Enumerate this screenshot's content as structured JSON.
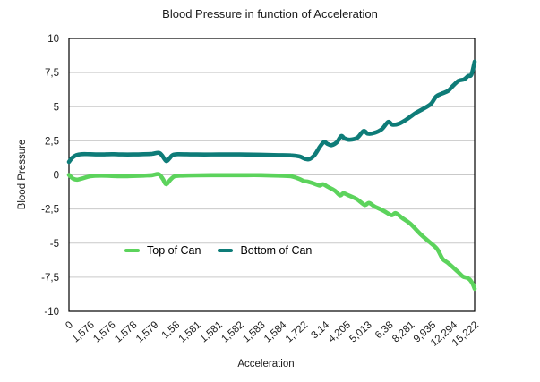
{
  "chart_data": {
    "type": "line",
    "title": "Blood Pressure in function of Acceleration",
    "xlabel": "Acceleration",
    "ylabel": "Blood Pressure",
    "ylim": [
      -10,
      10
    ],
    "grid": "horizontal-only",
    "legend_position": "inside-lower-left",
    "colors": {
      "top_of_can": "#5cd35c",
      "bottom_of_can": "#0e7c78",
      "gridline": "#c9c9c9",
      "plot_border": "#000000",
      "text": "#1a1a1a"
    },
    "y_ticks": [
      {
        "label": "10",
        "value": 10
      },
      {
        "label": "7,5",
        "value": 7.5
      },
      {
        "label": "5",
        "value": 5
      },
      {
        "label": "2,5",
        "value": 2.5
      },
      {
        "label": "0",
        "value": 0
      },
      {
        "label": "-2,5",
        "value": -2.5
      },
      {
        "label": "-5",
        "value": -5
      },
      {
        "label": "-7,5",
        "value": -7.5
      },
      {
        "label": "-10",
        "value": -10
      }
    ],
    "categories": [
      "0",
      "1,576",
      "1,576",
      "1,578",
      "1,579",
      "1,58",
      "1,581",
      "1,581",
      "1,582",
      "1,583",
      "1,584",
      "1,722",
      "3,14",
      "4,205",
      "5,013",
      "6,38",
      "8,281",
      "9,935",
      "12,294",
      "15,222"
    ],
    "series": [
      {
        "name": "Top of Can",
        "color_key": "top_of_can",
        "points": [
          [
            0,
            0.0
          ],
          [
            0.2,
            -0.28
          ],
          [
            0.4,
            -0.35
          ],
          [
            0.65,
            -0.25
          ],
          [
            1,
            -0.1
          ],
          [
            1.5,
            -0.05
          ],
          [
            2,
            -0.08
          ],
          [
            2.5,
            -0.1
          ],
          [
            3,
            -0.08
          ],
          [
            3.5,
            -0.05
          ],
          [
            3.9,
            -0.02
          ],
          [
            4.2,
            0.05
          ],
          [
            4.4,
            -0.3
          ],
          [
            4.55,
            -0.68
          ],
          [
            4.75,
            -0.35
          ],
          [
            4.95,
            -0.1
          ],
          [
            5.3,
            -0.05
          ],
          [
            6,
            -0.03
          ],
          [
            7,
            -0.02
          ],
          [
            8,
            -0.02
          ],
          [
            9,
            -0.02
          ],
          [
            9.8,
            -0.05
          ],
          [
            10.4,
            -0.1
          ],
          [
            10.8,
            -0.3
          ],
          [
            11.0,
            -0.45
          ],
          [
            11.2,
            -0.5
          ],
          [
            11.5,
            -0.65
          ],
          [
            11.75,
            -0.78
          ],
          [
            11.9,
            -0.68
          ],
          [
            12.1,
            -0.85
          ],
          [
            12.45,
            -1.15
          ],
          [
            12.7,
            -1.5
          ],
          [
            12.85,
            -1.35
          ],
          [
            13.1,
            -1.5
          ],
          [
            13.5,
            -1.8
          ],
          [
            13.85,
            -2.2
          ],
          [
            14.05,
            -2.05
          ],
          [
            14.3,
            -2.3
          ],
          [
            14.7,
            -2.6
          ],
          [
            15.1,
            -2.95
          ],
          [
            15.3,
            -2.8
          ],
          [
            15.6,
            -3.15
          ],
          [
            16.0,
            -3.6
          ],
          [
            16.5,
            -4.4
          ],
          [
            16.95,
            -5.0
          ],
          [
            17.25,
            -5.45
          ],
          [
            17.5,
            -6.15
          ],
          [
            17.75,
            -6.45
          ],
          [
            18.0,
            -6.8
          ],
          [
            18.25,
            -7.15
          ],
          [
            18.45,
            -7.45
          ],
          [
            18.7,
            -7.58
          ],
          [
            18.88,
            -7.9
          ],
          [
            19,
            -8.35
          ]
        ]
      },
      {
        "name": "Bottom of Can",
        "color_key": "bottom_of_can",
        "points": [
          [
            0,
            0.95
          ],
          [
            0.15,
            1.25
          ],
          [
            0.35,
            1.45
          ],
          [
            0.6,
            1.52
          ],
          [
            1,
            1.52
          ],
          [
            1.5,
            1.5
          ],
          [
            2,
            1.52
          ],
          [
            2.5,
            1.5
          ],
          [
            3,
            1.5
          ],
          [
            3.5,
            1.52
          ],
          [
            3.9,
            1.55
          ],
          [
            4.2,
            1.62
          ],
          [
            4.35,
            1.45
          ],
          [
            4.55,
            1.02
          ],
          [
            4.7,
            1.2
          ],
          [
            4.85,
            1.45
          ],
          [
            5.1,
            1.52
          ],
          [
            6,
            1.5
          ],
          [
            7,
            1.5
          ],
          [
            8,
            1.5
          ],
          [
            9,
            1.48
          ],
          [
            9.8,
            1.45
          ],
          [
            10.4,
            1.43
          ],
          [
            10.8,
            1.35
          ],
          [
            11.05,
            1.18
          ],
          [
            11.25,
            1.15
          ],
          [
            11.5,
            1.45
          ],
          [
            11.75,
            2.05
          ],
          [
            11.95,
            2.42
          ],
          [
            12.1,
            2.28
          ],
          [
            12.3,
            2.18
          ],
          [
            12.55,
            2.4
          ],
          [
            12.75,
            2.85
          ],
          [
            12.9,
            2.68
          ],
          [
            13.15,
            2.58
          ],
          [
            13.5,
            2.72
          ],
          [
            13.8,
            3.22
          ],
          [
            14.0,
            3.02
          ],
          [
            14.3,
            3.08
          ],
          [
            14.65,
            3.35
          ],
          [
            14.95,
            3.88
          ],
          [
            15.15,
            3.68
          ],
          [
            15.45,
            3.75
          ],
          [
            15.8,
            4.05
          ],
          [
            16.2,
            4.5
          ],
          [
            16.6,
            4.85
          ],
          [
            16.95,
            5.2
          ],
          [
            17.2,
            5.75
          ],
          [
            17.45,
            5.95
          ],
          [
            17.75,
            6.15
          ],
          [
            18.0,
            6.55
          ],
          [
            18.25,
            6.9
          ],
          [
            18.5,
            7.0
          ],
          [
            18.7,
            7.25
          ],
          [
            18.85,
            7.35
          ],
          [
            19,
            8.3
          ]
        ]
      }
    ]
  }
}
